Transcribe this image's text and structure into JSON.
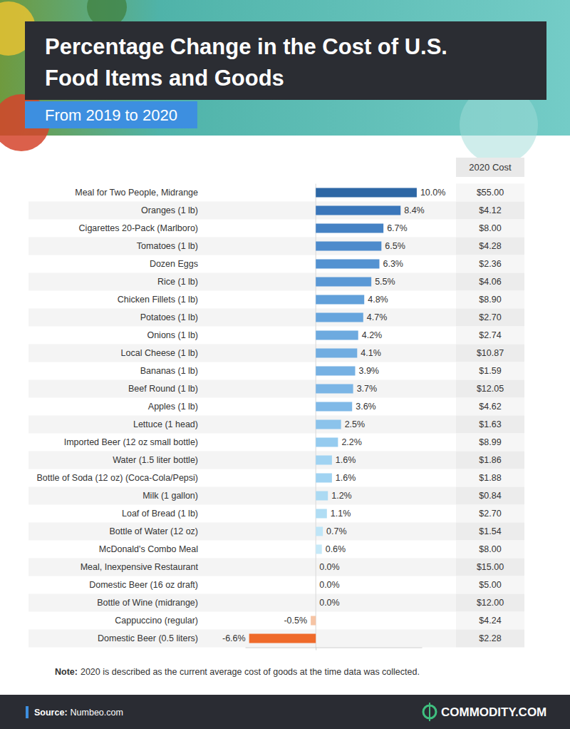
{
  "chart_data": {
    "type": "bar",
    "orientation": "horizontal",
    "title": "Percentage Change in the Cost of U.S. Food Items and Goods",
    "subtitle": "From 2019 to 2020",
    "categories": [
      "Meal for Two People, Midrange",
      "Oranges (1 lb)",
      "Cigarettes 20-Pack (Marlboro)",
      "Tomatoes (1 lb)",
      "Dozen Eggs",
      "Rice (1 lb)",
      "Chicken Fillets (1 lb)",
      "Potatoes (1 lb)",
      "Onions (1 lb)",
      "Local Cheese (1 lb)",
      "Bananas (1 lb)",
      "Beef Round (1 lb)",
      "Apples (1 lb)",
      "Lettuce (1 head)",
      "Imported Beer (12 oz small bottle)",
      "Water (1.5 liter bottle)",
      "Bottle of Soda (12 oz) (Coca-Cola/Pepsi)",
      "Milk (1 gallon)",
      "Loaf of Bread (1 lb)",
      "Bottle of Water (12 oz)",
      "McDonald's Combo Meal",
      "Meal, Inexpensive Restaurant",
      "Domestic Beer (16 oz draft)",
      "Bottle of Wine (midrange)",
      "Cappuccino (regular)",
      "Domestic Beer (0.5 liters)"
    ],
    "values": [
      10.0,
      8.4,
      6.7,
      6.5,
      6.3,
      5.5,
      4.8,
      4.7,
      4.2,
      4.1,
      3.9,
      3.7,
      3.6,
      2.5,
      2.2,
      1.6,
      1.6,
      1.2,
      1.1,
      0.7,
      0.6,
      0.0,
      0.0,
      0.0,
      -0.5,
      -6.6
    ],
    "value_labels": [
      "10.0%",
      "8.4%",
      "6.7%",
      "6.5%",
      "6.3%",
      "5.5%",
      "4.8%",
      "4.7%",
      "4.2%",
      "4.1%",
      "3.9%",
      "3.7%",
      "3.6%",
      "2.5%",
      "2.2%",
      "1.6%",
      "1.6%",
      "1.2%",
      "1.1%",
      "0.7%",
      "0.6%",
      "0.0%",
      "0.0%",
      "0.0%",
      "-0.5%",
      "-6.6%"
    ],
    "colors": [
      "#2d67a5",
      "#3a76ba",
      "#4582c4",
      "#4d8bcc",
      "#5392d1",
      "#5a98d5",
      "#61a0da",
      "#67a5dd",
      "#6daadf",
      "#71ade1",
      "#76b1e3",
      "#7bb5e5",
      "#80b9e7",
      "#8bc3eb",
      "#95cbef",
      "#a0d3f2",
      "#a0d3f2",
      "#abdaf3",
      "#b0ddf4",
      "#bfe5f7",
      "#c6e9f8",
      "#c6e9f8",
      "#c6e9f8",
      "#c6e9f8",
      "#f6c4a4",
      "#ef6a2a"
    ],
    "data_labels": true,
    "xlim": [
      -7,
      10.5
    ],
    "xticks": [
      0
    ],
    "tick_labels": false,
    "grid": true,
    "cost_header": "2020 Cost",
    "costs": [
      "$55.00",
      "$4.12",
      "$8.00",
      "$4.28",
      "$2.36",
      "$4.06",
      "$8.90",
      "$2.70",
      "$2.74",
      "$10.87",
      "$1.59",
      "$12.05",
      "$4.62",
      "$1.63",
      "$8.99",
      "$1.86",
      "$1.88",
      "$0.84",
      "$2.70",
      "$1.54",
      "$8.00",
      "$15.00",
      "$5.00",
      "$12.00",
      "$4.24",
      "$2.28"
    ],
    "note_label": "Note:",
    "note": "2020 is described as the current average cost of goods at the time data was collected.",
    "source_label": "Source:",
    "source": "Numbeo.com",
    "brand": "COMMODITY.COM"
  }
}
